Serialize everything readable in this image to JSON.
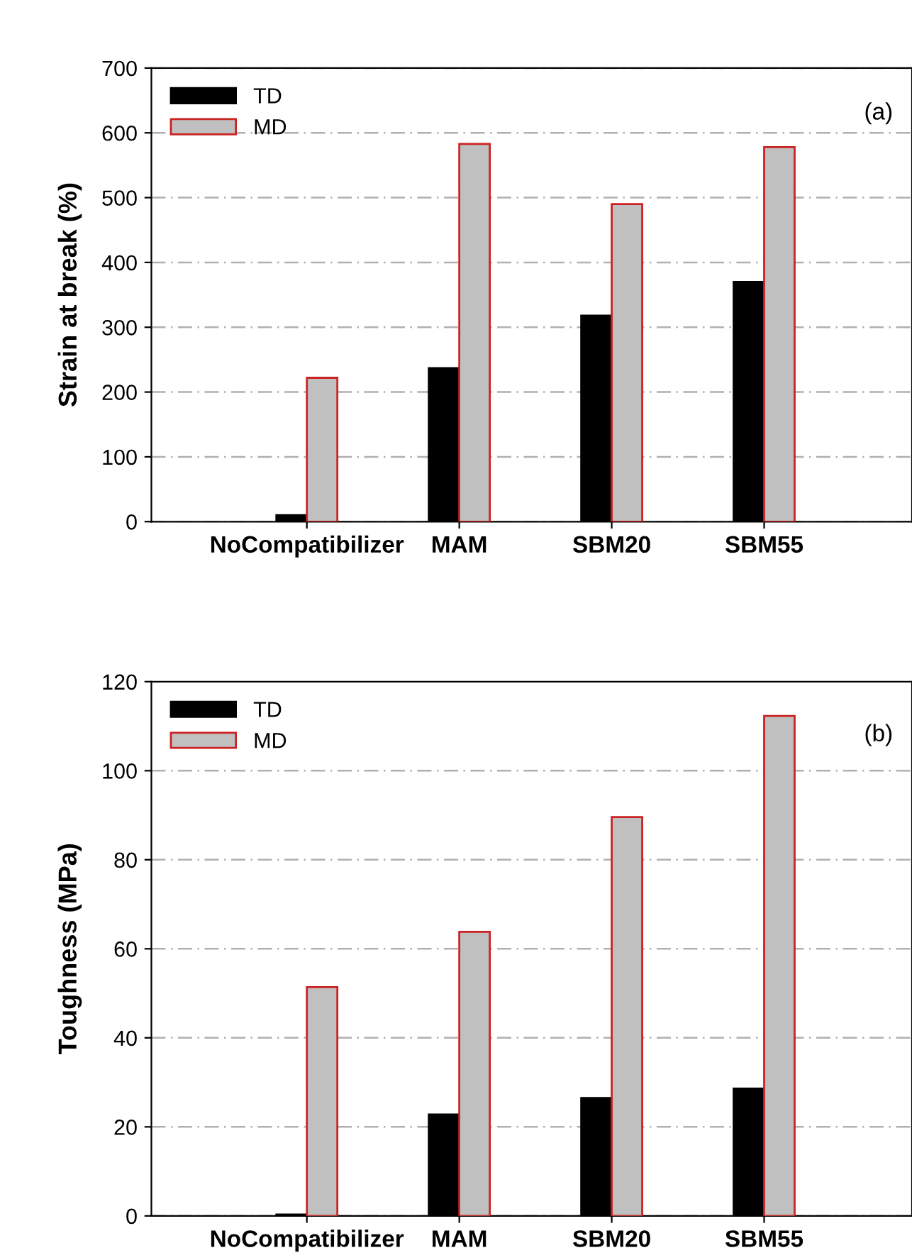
{
  "chart_data": [
    {
      "type": "bar",
      "ylabel": "Strain at break (%)",
      "annotations": [
        "(a)"
      ],
      "categories": [
        "NoCompatibilizer",
        "MAM",
        "SBM20",
        "SBM55"
      ],
      "series": [
        {
          "name": "TD",
          "color": "#000000",
          "values": [
            10,
            237,
            318,
            370
          ]
        },
        {
          "name": "MD",
          "color": "#c0c0c0",
          "values": [
            222,
            583,
            490,
            578
          ]
        }
      ],
      "ylim": [
        0,
        700
      ],
      "yticks": [
        0,
        100,
        200,
        300,
        400,
        500,
        600,
        700
      ],
      "grid": "y",
      "legend": "top left"
    },
    {
      "type": "bar",
      "ylabel": "Toughness (MPa)",
      "annotations": [
        "(b)"
      ],
      "categories": [
        "NoCompatibilizer",
        "MAM",
        "SBM20",
        "SBM55"
      ],
      "series": [
        {
          "name": "TD",
          "color": "#000000",
          "values": [
            0.3,
            22.8,
            26.5,
            28.6
          ]
        },
        {
          "name": "MD",
          "color": "#c0c0c0",
          "values": [
            51.4,
            63.8,
            89.6,
            112.3
          ]
        }
      ],
      "ylim": [
        0,
        120
      ],
      "yticks": [
        0,
        20,
        40,
        60,
        80,
        100,
        120
      ],
      "grid": "y",
      "legend": "top left"
    }
  ]
}
